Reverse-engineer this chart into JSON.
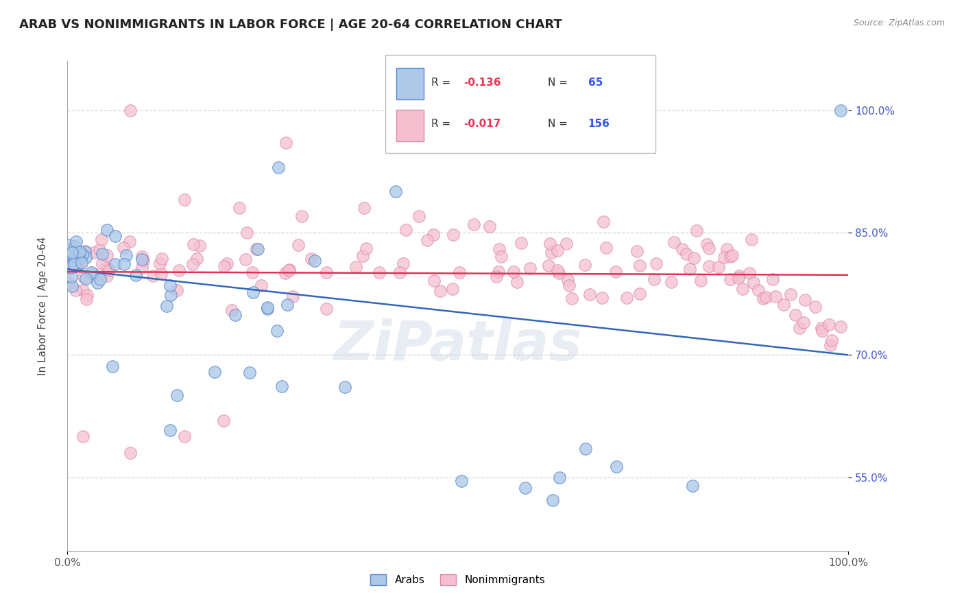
{
  "title": "ARAB VS NONIMMIGRANTS IN LABOR FORCE | AGE 20-64 CORRELATION CHART",
  "source": "Source: ZipAtlas.com",
  "ylabel": "In Labor Force | Age 20-64",
  "xlim": [
    0,
    100
  ],
  "ylim": [
    46,
    106
  ],
  "yticks": [
    55.0,
    70.0,
    85.0,
    100.0
  ],
  "xtick_labels": [
    "0.0%",
    "100.0%"
  ],
  "ytick_labels": [
    "55.0%",
    "70.0%",
    "85.0%",
    "100.0%"
  ],
  "arab_R": -0.136,
  "arab_N": 65,
  "nonimm_R": -0.017,
  "nonimm_N": 156,
  "arab_color": "#aec8e8",
  "arab_edge_color": "#5588cc",
  "nonimm_color": "#f5bfd0",
  "nonimm_edge_color": "#dd88aa",
  "trend_arab_color": "#3366bb",
  "trend_nonimm_color": "#dd3355",
  "background_color": "#ffffff",
  "grid_color": "#cccccc",
  "watermark": "ZiPatlas",
  "title_color": "#222222",
  "source_color": "#888888",
  "legend_R_color": "#ee3355",
  "legend_N_color": "#3355ee",
  "arab_trend_y0": 80.5,
  "arab_trend_y1": 70.0,
  "nonimm_trend_y0": 80.2,
  "nonimm_trend_y1": 79.8
}
